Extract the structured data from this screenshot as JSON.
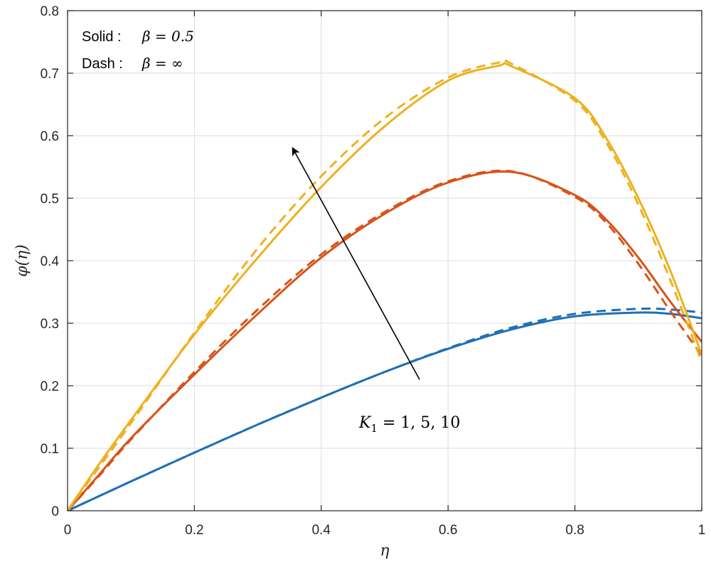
{
  "chart_data": {
    "type": "line",
    "xlabel": "η",
    "ylabel": "φ(η)",
    "xlim": [
      0,
      1
    ],
    "ylim": [
      0,
      0.8
    ],
    "x_ticks": [
      "0",
      "0.2",
      "0.4",
      "0.6",
      "0.8",
      "1"
    ],
    "y_ticks": [
      "0",
      "0.1",
      "0.2",
      "0.3",
      "0.4",
      "0.5",
      "0.6",
      "0.7",
      "0.8"
    ],
    "grid": true,
    "legend": {
      "placement": "top-left",
      "line1_label": "Solid :",
      "line1_math": "β = 0.5",
      "line2_label": "Dash :",
      "line2_math": "β = ∞"
    },
    "annotation": {
      "text_symbol": "K",
      "text_sub": "1",
      "text_rest": " = 1, 5, 10",
      "arrow_from": [
        0.555,
        0.21
      ],
      "arrow_to": [
        0.355,
        0.58
      ]
    },
    "series": [
      {
        "color": "#1f6fb5",
        "style": "solid",
        "x": [
          0,
          0.1,
          0.2,
          0.3,
          0.4,
          0.5,
          0.6,
          0.7,
          0.8,
          0.9,
          0.95,
          1.0
        ],
        "y": [
          0,
          0.047,
          0.093,
          0.138,
          0.181,
          0.222,
          0.259,
          0.29,
          0.311,
          0.317,
          0.315,
          0.308
        ]
      },
      {
        "color": "#1f6fb5",
        "style": "dashed",
        "x": [
          0,
          0.1,
          0.2,
          0.3,
          0.4,
          0.5,
          0.6,
          0.7,
          0.8,
          0.9,
          0.95,
          1.0
        ],
        "y": [
          0,
          0.047,
          0.093,
          0.138,
          0.181,
          0.222,
          0.26,
          0.293,
          0.315,
          0.323,
          0.322,
          0.317
        ]
      },
      {
        "color": "#d95319",
        "style": "solid",
        "x": [
          0,
          0.05,
          0.1,
          0.2,
          0.3,
          0.4,
          0.5,
          0.6,
          0.7,
          0.8,
          0.85,
          0.9,
          0.95,
          1.0
        ],
        "y": [
          0,
          0.058,
          0.116,
          0.218,
          0.315,
          0.405,
          0.475,
          0.525,
          0.542,
          0.505,
          0.465,
          0.405,
          0.335,
          0.27
        ]
      },
      {
        "color": "#d95319",
        "style": "dashed",
        "x": [
          0,
          0.05,
          0.1,
          0.2,
          0.3,
          0.4,
          0.5,
          0.6,
          0.7,
          0.8,
          0.85,
          0.9,
          0.95,
          1.0
        ],
        "y": [
          0,
          0.056,
          0.114,
          0.222,
          0.322,
          0.41,
          0.478,
          0.527,
          0.543,
          0.502,
          0.46,
          0.395,
          0.32,
          0.248
        ]
      },
      {
        "color": "#edb120",
        "style": "solid",
        "x": [
          0,
          0.05,
          0.1,
          0.2,
          0.3,
          0.4,
          0.5,
          0.6,
          0.68,
          0.7,
          0.8,
          0.85,
          0.9,
          0.95,
          1.0
        ],
        "y": [
          0,
          0.075,
          0.145,
          0.282,
          0.405,
          0.518,
          0.615,
          0.688,
          0.712,
          0.711,
          0.66,
          0.595,
          0.5,
          0.385,
          0.25
        ]
      },
      {
        "color": "#edb120",
        "style": "dashed",
        "x": [
          0,
          0.05,
          0.1,
          0.2,
          0.3,
          0.4,
          0.5,
          0.6,
          0.68,
          0.7,
          0.8,
          0.85,
          0.9,
          0.95,
          1.0
        ],
        "y": [
          0,
          0.07,
          0.14,
          0.285,
          0.42,
          0.535,
          0.628,
          0.693,
          0.717,
          0.715,
          0.656,
          0.588,
          0.49,
          0.37,
          0.238
        ]
      }
    ]
  }
}
